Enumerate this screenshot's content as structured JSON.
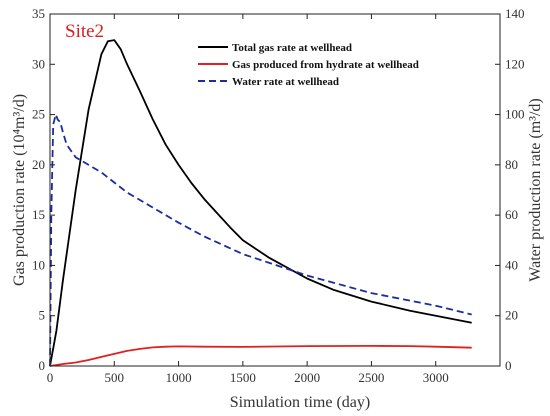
{
  "chart_data": {
    "type": "line",
    "annotation": "Site2",
    "xlabel": "Simulation time  (day)",
    "ylabel_left": "Gas production rate (10⁴m³/d)",
    "ylabel_right": "Water production rate (m³/d)",
    "xlim": [
      0,
      3500
    ],
    "ylim_left": [
      0,
      35
    ],
    "ylim_right": [
      0,
      140
    ],
    "x_ticks": [
      0,
      500,
      1000,
      1500,
      2000,
      2500,
      3000
    ],
    "y_ticks_left": [
      0,
      5,
      10,
      15,
      20,
      25,
      30,
      35
    ],
    "y_ticks_right": [
      0,
      20,
      40,
      60,
      80,
      100,
      120,
      140
    ],
    "grid": false,
    "legend_position": "top-right",
    "series": [
      {
        "name": "Total gas rate at wellhead",
        "axis": "left",
        "color": "#000000",
        "dash": "solid",
        "x": [
          0,
          50,
          100,
          200,
          300,
          400,
          450,
          500,
          550,
          600,
          700,
          800,
          900,
          1000,
          1100,
          1200,
          1300,
          1400,
          1500,
          1700,
          2000,
          2200,
          2500,
          2800,
          3000,
          3280
        ],
        "y": [
          0,
          3.5,
          8.5,
          17.5,
          25.5,
          31.0,
          32.3,
          32.4,
          31.5,
          30.0,
          27.3,
          24.5,
          22.0,
          20.0,
          18.2,
          16.6,
          15.2,
          13.8,
          12.5,
          10.8,
          8.7,
          7.6,
          6.4,
          5.5,
          5.0,
          4.3
        ]
      },
      {
        "name": "Gas produced from hydrate at wellhead",
        "axis": "left",
        "color": "#e02020",
        "dash": "solid",
        "x": [
          0,
          100,
          200,
          300,
          400,
          500,
          600,
          700,
          800,
          900,
          1000,
          1200,
          1500,
          2000,
          2500,
          2800,
          3000,
          3280
        ],
        "y": [
          0,
          0.2,
          0.35,
          0.6,
          0.9,
          1.2,
          1.5,
          1.7,
          1.85,
          1.92,
          1.95,
          1.92,
          1.9,
          1.98,
          2.0,
          1.98,
          1.92,
          1.82
        ]
      },
      {
        "name": "Water rate at wellhead",
        "axis": "right",
        "color": "#1c2c9e",
        "dash": "dashed",
        "x": [
          0,
          10,
          25,
          45,
          60,
          80,
          100,
          130,
          200,
          300,
          400,
          500,
          600,
          800,
          1000,
          1200,
          1500,
          2000,
          2500,
          3000,
          3280
        ],
        "y": [
          0,
          60,
          96,
          100,
          98,
          97,
          93,
          88,
          83,
          80,
          77,
          73,
          69,
          63,
          57,
          51.5,
          44.5,
          36,
          29,
          24,
          20.5
        ]
      }
    ]
  }
}
